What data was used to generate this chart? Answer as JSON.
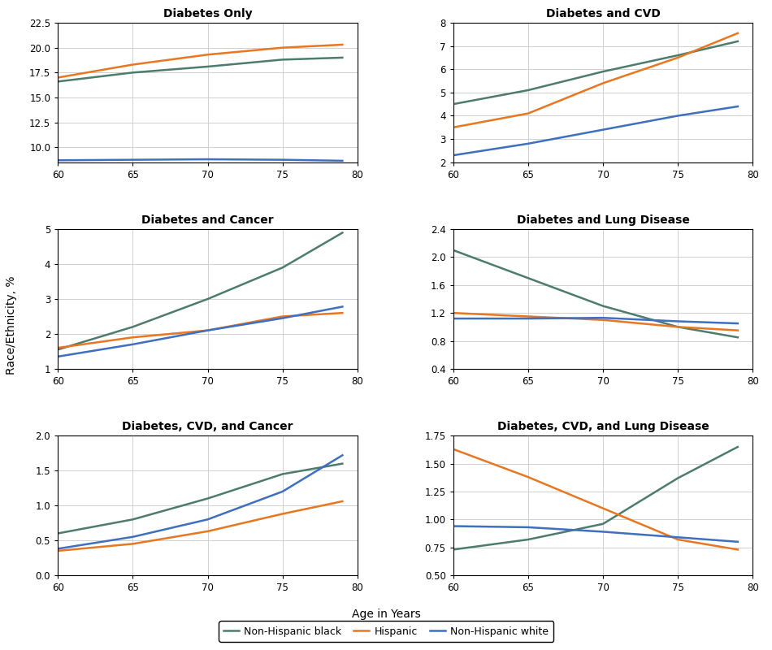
{
  "age": [
    60,
    65,
    70,
    75,
    79
  ],
  "subplots": [
    {
      "title": "Diabetes Only",
      "ylim": [
        8.5,
        22.5
      ],
      "yticks": [
        10.0,
        12.5,
        15.0,
        17.5,
        20.0,
        22.5
      ],
      "series": {
        "black": [
          16.6,
          17.5,
          18.1,
          18.8,
          19.0
        ],
        "hispanic": [
          17.0,
          18.3,
          19.3,
          20.0,
          20.3
        ],
        "white": [
          8.7,
          8.75,
          8.8,
          8.75,
          8.65
        ]
      }
    },
    {
      "title": "Diabetes and CVD",
      "ylim": [
        2.0,
        8.0
      ],
      "yticks": [
        2,
        3,
        4,
        5,
        6,
        7,
        8
      ],
      "series": {
        "black": [
          4.5,
          5.1,
          5.9,
          6.6,
          7.2
        ],
        "hispanic": [
          3.5,
          4.1,
          5.4,
          6.5,
          7.55
        ],
        "white": [
          2.3,
          2.8,
          3.4,
          4.0,
          4.4
        ]
      }
    },
    {
      "title": "Diabetes and Cancer",
      "ylim": [
        1.0,
        5.0
      ],
      "yticks": [
        1,
        2,
        3,
        4,
        5
      ],
      "series": {
        "black": [
          1.55,
          2.2,
          3.0,
          3.9,
          4.9
        ],
        "hispanic": [
          1.6,
          1.9,
          2.1,
          2.5,
          2.6
        ],
        "white": [
          1.35,
          1.7,
          2.1,
          2.45,
          2.78
        ]
      }
    },
    {
      "title": "Diabetes and Lung Disease",
      "ylim": [
        0.4,
        2.4
      ],
      "yticks": [
        0.4,
        0.8,
        1.2,
        1.6,
        2.0,
        2.4
      ],
      "series": {
        "black": [
          2.1,
          1.7,
          1.3,
          1.0,
          0.85
        ],
        "hispanic": [
          1.2,
          1.15,
          1.1,
          1.0,
          0.95
        ],
        "white": [
          1.12,
          1.12,
          1.13,
          1.08,
          1.05
        ]
      }
    },
    {
      "title": "Diabetes, CVD, and Cancer",
      "ylim": [
        0.0,
        2.0
      ],
      "yticks": [
        0.0,
        0.5,
        1.0,
        1.5,
        2.0
      ],
      "series": {
        "black": [
          0.6,
          0.8,
          1.1,
          1.45,
          1.6
        ],
        "hispanic": [
          0.35,
          0.45,
          0.63,
          0.88,
          1.06
        ],
        "white": [
          0.38,
          0.55,
          0.8,
          1.2,
          1.72
        ]
      }
    },
    {
      "title": "Diabetes, CVD, and Lung Disease",
      "ylim": [
        0.5,
        1.75
      ],
      "yticks": [
        0.5,
        0.75,
        1.0,
        1.25,
        1.5,
        1.75
      ],
      "series": {
        "black": [
          0.73,
          0.82,
          0.96,
          1.37,
          1.65
        ],
        "hispanic": [
          1.63,
          1.38,
          1.1,
          0.82,
          0.73
        ],
        "white": [
          0.94,
          0.93,
          0.89,
          0.84,
          0.8
        ]
      }
    }
  ],
  "colors": {
    "black": "#4d7c6f",
    "hispanic": "#e87722",
    "white": "#3f6fbf"
  },
  "legend_labels": {
    "black": "Non-Hispanic black",
    "hispanic": "Hispanic",
    "white": "Non-Hispanic white"
  },
  "ylabel": "Race/Ethnicity, %",
  "xlabel": "Age in Years",
  "background_color": "#ffffff",
  "grid_color": "#d0d0d0"
}
